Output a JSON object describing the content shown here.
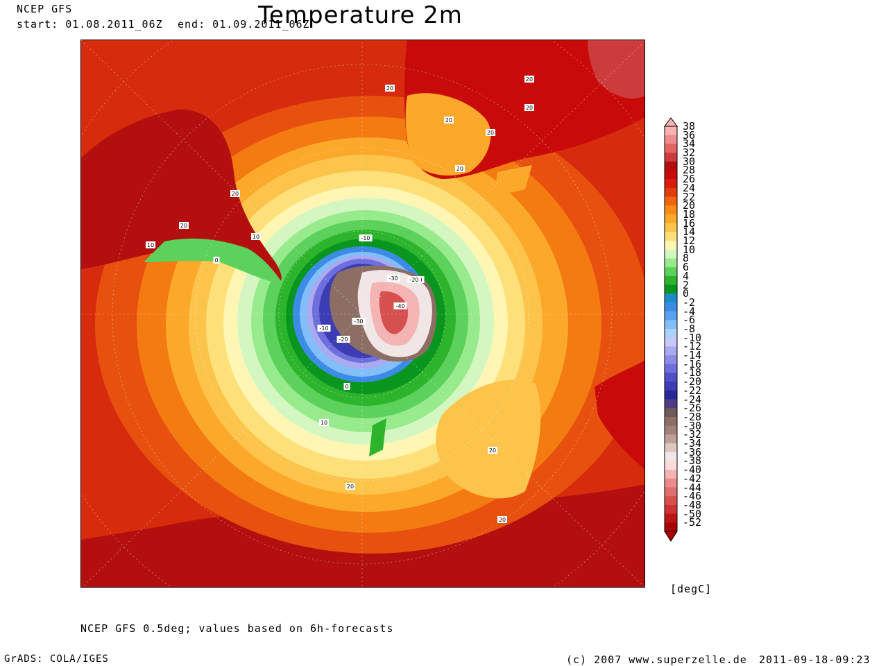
{
  "header": {
    "model": "NCEP GFS",
    "start": "start: 01.08.2011_06Z",
    "end": "end: 01.09.2011_06Z",
    "title": "Temperature 2m"
  },
  "map": {
    "projection": "south-polar-stereographic",
    "contour_labels": [
      "20",
      "20",
      "20",
      "20",
      "20",
      "20",
      "20",
      "20",
      "10",
      "10",
      "0",
      "-10",
      "-20",
      "-30",
      "-40",
      "-30",
      "-10",
      "-20",
      "-20",
      "0",
      "10",
      "20",
      "20",
      "20"
    ]
  },
  "colorbar": {
    "unit": "[degC]",
    "levels": [
      "38",
      "36",
      "34",
      "32",
      "30",
      "28",
      "26",
      "24",
      "22",
      "20",
      "18",
      "16",
      "14",
      "12",
      "10",
      "8",
      "6",
      "4",
      "2",
      "0",
      "-2",
      "-4",
      "-6",
      "-8",
      "-10",
      "-12",
      "-14",
      "-16",
      "-18",
      "-20",
      "-22",
      "-24",
      "-26",
      "-28",
      "-30",
      "-32",
      "-34",
      "-36",
      "-38",
      "-40",
      "-42",
      "-44",
      "-46",
      "-48",
      "-50",
      "-52"
    ],
    "colors": [
      "#f7b2b2",
      "#ef8c8c",
      "#e06464",
      "#cc3c3c",
      "#b40f0f",
      "#c80a0a",
      "#d81e0a",
      "#e13c0a",
      "#f0640f",
      "#f88c14",
      "#fca82a",
      "#fdc44c",
      "#fee07a",
      "#fff6b4",
      "#d4f7c2",
      "#98eb8c",
      "#5cd25c",
      "#2db42d",
      "#0a961e",
      "#1e8cc8",
      "#3c8ce6",
      "#5aa0f0",
      "#82bef8",
      "#aad2fa",
      "#c8c8fa",
      "#aaaaf0",
      "#8c8ce6",
      "#6e6edc",
      "#5050c8",
      "#3c3cb4",
      "#28289a",
      "#503c82",
      "#6e5a5a",
      "#8c6e64",
      "#a08278",
      "#bea096",
      "#dcc8c0",
      "#f0e6e6",
      "#fadcdc",
      "#f5b4b4",
      "#eb8c8c",
      "#e16e6e",
      "#d75050",
      "#cd3232",
      "#be1414",
      "#aa0000"
    ]
  },
  "footer": {
    "note": "NCEP GFS 0.5deg; values based on 6h-forecasts",
    "software": "GrADS: COLA/IGES",
    "copyright": "(c) 2007 www.superzelle.de",
    "timestamp": "2011-09-18-09:23"
  }
}
